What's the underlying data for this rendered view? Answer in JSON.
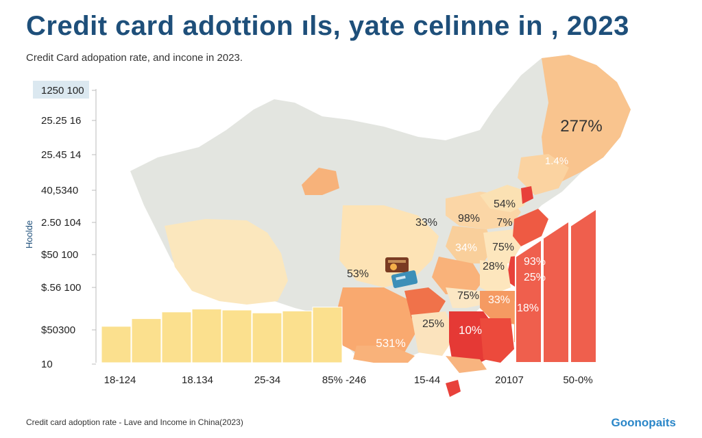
{
  "title": "Credit card adottion ıls, yate celinne in , 2023",
  "subtitle": "Credit Card adopation rate, and incone in 2023.",
  "footer": "Credit card adoption rate - Lave and Income in China(2023)",
  "brand": "Goonopaits",
  "colors": {
    "title": "#1e4f7a",
    "bar_yellow": "#fbe08e",
    "map_gray": "#e2e4df",
    "light_peach": "#fde5b6",
    "orange": "#f7a86b",
    "red": "#e8413a",
    "bar_red": "#ef5f4d",
    "brand": "#2a86c8"
  },
  "chart_data": {
    "type": "bar",
    "title": "Credit card adottion ıls, yate celinne in , 2023",
    "subtitle": "Credit Card adopation rate, and incone in 2023.",
    "ylabel": "Hoolde",
    "y_tick_labels": [
      "1250 100",
      "25.25 16",
      "25.45 14",
      "40,5340",
      "2.50 104",
      "$50 100",
      "$.56 100",
      "$50300",
      "10"
    ],
    "x_tick_labels": [
      "18-124",
      "18.134",
      "25-34",
      "85% -246",
      "15-44",
      "20107",
      "50-0%"
    ],
    "income_bars": [
      {
        "position": 1,
        "relative_height": 0.38
      },
      {
        "position": 2,
        "relative_height": 0.46
      },
      {
        "position": 3,
        "relative_height": 0.53
      },
      {
        "position": 4,
        "relative_height": 0.56
      },
      {
        "position": 5,
        "relative_height": 0.55
      },
      {
        "position": 6,
        "relative_height": 0.52
      },
      {
        "position": 7,
        "relative_height": 0.54
      },
      {
        "position": 8,
        "relative_height": 0.58
      }
    ],
    "adoption_bars": [
      {
        "position": 1,
        "relative_height": 0.8
      },
      {
        "position": 2,
        "relative_height": 0.92
      },
      {
        "position": 3,
        "relative_height": 1.0
      }
    ],
    "region_labels": [
      {
        "text": "277%",
        "color": "dark"
      },
      {
        "text": "1.4%",
        "color": "white"
      },
      {
        "text": "54%",
        "color": "dark"
      },
      {
        "text": "33%",
        "color": "dark"
      },
      {
        "text": "98%",
        "color": "dark"
      },
      {
        "text": "7%",
        "color": "dark"
      },
      {
        "text": "34%",
        "color": "white"
      },
      {
        "text": "75%",
        "color": "dark"
      },
      {
        "text": "28%",
        "color": "dark"
      },
      {
        "text": "93%",
        "color": "white"
      },
      {
        "text": "25%",
        "color": "white"
      },
      {
        "text": "53%",
        "color": "dark"
      },
      {
        "text": "75%",
        "color": "dark"
      },
      {
        "text": "33%",
        "color": "white"
      },
      {
        "text": "18%",
        "color": "white"
      },
      {
        "text": "25%",
        "color": "dark"
      },
      {
        "text": "10%",
        "color": "white"
      },
      {
        "text": "531%",
        "color": "white"
      }
    ]
  }
}
